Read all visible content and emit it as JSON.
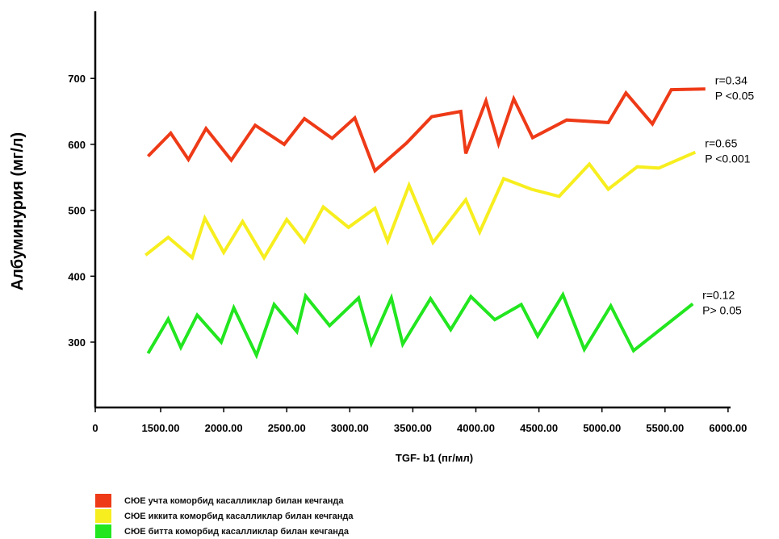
{
  "chart_data": {
    "type": "line",
    "ylabel": "Албуминурия (мг/л)",
    "xlabel": "TGF- b1 (пг/мл)",
    "y_ticks": [
      "300",
      "400",
      "500",
      "600",
      "700"
    ],
    "x_ticks": [
      "0",
      "1500.00",
      "2000.00",
      "2500.00",
      "3000.00",
      "3500.00",
      "4000.00",
      "4500.00",
      "5000.00",
      "5500.00",
      "6000.00"
    ],
    "grid": false,
    "legend_position": "bottom-left",
    "series": [
      {
        "name": "СЮЕ учта коморбид касалликлар билан кечганда",
        "color": "#ee3a17",
        "stat_r": "r=0.34",
        "stat_p": "P <0.05",
        "points": [
          [
            1400,
            582
          ],
          [
            1580,
            617
          ],
          [
            1720,
            577
          ],
          [
            1860,
            624
          ],
          [
            2060,
            576
          ],
          [
            2250,
            629
          ],
          [
            2480,
            600
          ],
          [
            2640,
            639
          ],
          [
            2860,
            609
          ],
          [
            3040,
            640
          ],
          [
            3200,
            560
          ],
          [
            3450,
            602
          ],
          [
            3650,
            642
          ],
          [
            3880,
            650
          ],
          [
            3920,
            586
          ],
          [
            4080,
            666
          ],
          [
            4180,
            601
          ],
          [
            4300,
            669
          ],
          [
            4450,
            610
          ],
          [
            4720,
            637
          ],
          [
            5050,
            633
          ],
          [
            5190,
            678
          ],
          [
            5400,
            631
          ],
          [
            5550,
            683
          ],
          [
            5820,
            684
          ]
        ]
      },
      {
        "name": "СЮЕ иккита коморбид касалликлар билан кечганда",
        "color": "#f7ee1f",
        "stat_r": "r=0.65",
        "stat_p": "P <0.001",
        "points": [
          [
            1380,
            432
          ],
          [
            1560,
            459
          ],
          [
            1750,
            428
          ],
          [
            1850,
            488
          ],
          [
            2000,
            436
          ],
          [
            2150,
            483
          ],
          [
            2320,
            428
          ],
          [
            2500,
            486
          ],
          [
            2640,
            452
          ],
          [
            2790,
            505
          ],
          [
            2990,
            474
          ],
          [
            3200,
            503
          ],
          [
            3300,
            453
          ],
          [
            3470,
            538
          ],
          [
            3660,
            451
          ],
          [
            3920,
            516
          ],
          [
            4030,
            467
          ],
          [
            4220,
            548
          ],
          [
            4440,
            532
          ],
          [
            4660,
            521
          ],
          [
            4900,
            570
          ],
          [
            5050,
            532
          ],
          [
            5280,
            566
          ],
          [
            5450,
            564
          ],
          [
            5740,
            588
          ]
        ]
      },
      {
        "name": "СЮЕ битта коморбид касалликлар билан кечганда",
        "color": "#22e61f",
        "stat_r": "r=0.12",
        "stat_p": "P> 0.05",
        "points": [
          [
            1400,
            283
          ],
          [
            1560,
            335
          ],
          [
            1660,
            292
          ],
          [
            1790,
            341
          ],
          [
            1980,
            300
          ],
          [
            2080,
            352
          ],
          [
            2260,
            280
          ],
          [
            2400,
            357
          ],
          [
            2580,
            316
          ],
          [
            2650,
            370
          ],
          [
            2840,
            325
          ],
          [
            3070,
            367
          ],
          [
            3170,
            298
          ],
          [
            3330,
            367
          ],
          [
            3420,
            297
          ],
          [
            3640,
            366
          ],
          [
            3800,
            319
          ],
          [
            3960,
            369
          ],
          [
            4150,
            334
          ],
          [
            4360,
            357
          ],
          [
            4490,
            309
          ],
          [
            4690,
            372
          ],
          [
            4860,
            289
          ],
          [
            5070,
            355
          ],
          [
            5250,
            287
          ],
          [
            5720,
            358
          ]
        ]
      }
    ]
  }
}
